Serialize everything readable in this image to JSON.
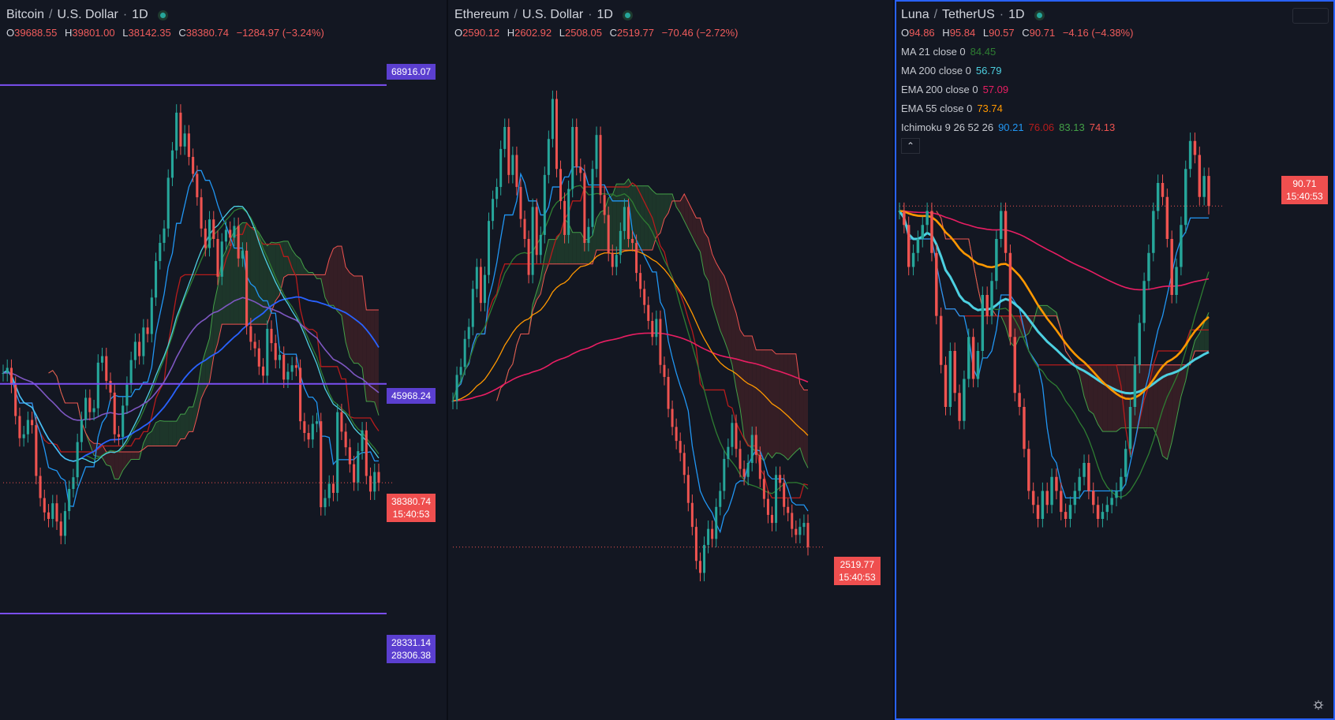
{
  "panes": [
    {
      "id": "btc",
      "symbol": "Bitcoin",
      "quote": "U.S. Dollar",
      "interval": "1D",
      "ohlc": {
        "o": "39688.55",
        "h": "39801.00",
        "l": "38142.35",
        "c": "38380.74",
        "change": "−1284.97 (−3.24%)"
      },
      "levels": [
        {
          "label": "68916.07",
          "kind": "horizontal-line"
        },
        {
          "label": "45968.24",
          "kind": "horizontal-line"
        },
        {
          "label": "28331.14",
          "kind": "horizontal-line"
        },
        {
          "label": "28306.38",
          "kind": "label"
        }
      ],
      "last_price": {
        "price": "38380.74",
        "countdown": "15:40:53"
      }
    },
    {
      "id": "eth",
      "symbol": "Ethereum",
      "quote": "U.S. Dollar",
      "interval": "1D",
      "ohlc": {
        "o": "2590.12",
        "h": "2602.92",
        "l": "2508.05",
        "c": "2519.77",
        "change": "−70.46 (−2.72%)"
      },
      "last_price": {
        "price": "2519.77",
        "countdown": "15:40:53"
      }
    },
    {
      "id": "luna",
      "symbol": "Luna",
      "quote": "TetherUS",
      "interval": "1D",
      "ohlc": {
        "o": "94.86",
        "h": "95.84",
        "l": "90.57",
        "c": "90.71",
        "change": "−4.16 (−4.38%)"
      },
      "indicators": [
        {
          "name": "MA 21 close 0",
          "values": [
            "84.45"
          ],
          "colors": [
            "#2e7d32"
          ]
        },
        {
          "name": "MA 200 close 0",
          "values": [
            "56.79"
          ],
          "colors": [
            "#4dd0e1"
          ]
        },
        {
          "name": "EMA 200 close 0",
          "values": [
            "57.09"
          ],
          "colors": [
            "#e91e63"
          ]
        },
        {
          "name": "EMA 55 close 0",
          "values": [
            "73.74"
          ],
          "colors": [
            "#ff9800"
          ]
        },
        {
          "name": "Ichimoku 9 26 52 26",
          "values": [
            "90.21",
            "76.06",
            "83.13",
            "74.13"
          ],
          "colors": [
            "#2196f3",
            "#b71c1c",
            "#43a047",
            "#ef5350"
          ]
        }
      ],
      "collapse_glyph": "⌃",
      "last_price": {
        "price": "90.71",
        "countdown": "15:40:53"
      }
    }
  ],
  "colors": {
    "background": "#131722",
    "up": "#26a69a",
    "down": "#ef5350",
    "level_line": "#7b4ff2",
    "label_purple": "#5b3fd0",
    "label_red": "#ef4f4f",
    "cloud_green": "#1f3a2b",
    "cloud_red": "#3a1f26"
  },
  "icons": {
    "status": "status-dot-icon",
    "settings": "gear-icon",
    "collapse": "chevron-up-icon"
  },
  "chart_data": [
    {
      "type": "line",
      "title": "Bitcoin / U.S. Dollar · 1D",
      "ylim": [
        27000,
        70000
      ],
      "series": [
        {
          "values": [
            46800,
            47200,
            45900,
            43500,
            41800,
            42100,
            43200,
            42800,
            38900,
            37200,
            36100,
            35600,
            36800,
            35400,
            34300,
            36200,
            37900,
            38800,
            41500,
            43200,
            44900,
            43800,
            44100,
            47600,
            48100,
            46200,
            45300,
            42100,
            41900,
            44300,
            45900,
            47800,
            49200,
            48100,
            50300,
            49800,
            52600,
            55400,
            56800,
            57900,
            61800,
            63900,
            66800,
            64200,
            65200,
            63400,
            62100,
            60300,
            57900,
            56400,
            58600,
            57100,
            54200,
            56900,
            57800,
            57200,
            58100,
            55600,
            56200,
            50400,
            49200,
            48700,
            47300,
            46600,
            50200,
            49100,
            47800,
            48200,
            46300,
            46900,
            47400,
            47200,
            43100,
            42200,
            41700,
            42900,
            43100,
            36500,
            37200,
            38300,
            37600,
            43800,
            42300,
            41100,
            39800,
            38400,
            40800,
            42400,
            38900,
            37700,
            39200,
            38380
          ]
        }
      ]
    },
    {
      "type": "line",
      "title": "Ethereum / U.S. Dollar · 1D",
      "ylim": [
        2100,
        4900
      ],
      "series": [
        {
          "values": [
            3250,
            3380,
            3420,
            3560,
            3620,
            3810,
            3920,
            3740,
            3880,
            4150,
            4260,
            4320,
            4510,
            4620,
            4380,
            4480,
            4320,
            4160,
            4060,
            3880,
            4220,
            3980,
            4080,
            4380,
            4560,
            4760,
            4410,
            4250,
            4080,
            4310,
            4620,
            4420,
            4390,
            4040,
            4120,
            4410,
            4580,
            4280,
            4180,
            3990,
            3920,
            3980,
            4100,
            4220,
            4060,
            4040,
            3890,
            3810,
            3730,
            3650,
            3570,
            3660,
            3430,
            3370,
            3210,
            3120,
            3050,
            2990,
            2880,
            2740,
            2620,
            2450,
            2390,
            2530,
            2610,
            2560,
            2720,
            2800,
            2960,
            3020,
            3140,
            3010,
            2910,
            2870,
            2940,
            3080,
            2980,
            2860,
            2760,
            2680,
            2640,
            2880,
            2840,
            2720,
            2690,
            2610,
            2580,
            2620,
            2640,
            2519
          ]
        }
      ]
    },
    {
      "type": "line",
      "title": "Luna / TetherUS · 1D",
      "ylim": [
        30,
        110
      ],
      "series": [
        {
          "values": [
            90,
            88,
            82,
            84,
            86,
            88,
            90,
            84,
            75,
            68,
            62,
            70,
            64,
            60,
            66,
            72,
            66,
            70,
            78,
            75,
            80,
            86,
            90,
            84,
            72,
            64,
            62,
            56,
            50,
            48,
            46,
            50,
            48,
            52,
            50,
            47,
            46,
            48,
            50,
            52,
            54,
            50,
            48,
            46,
            47,
            48,
            49,
            50,
            52,
            56,
            62,
            68,
            74,
            80,
            84,
            90,
            94,
            92,
            86,
            78,
            82,
            88,
            96,
            100,
            98,
            92,
            95,
            90.71
          ]
        }
      ]
    }
  ]
}
